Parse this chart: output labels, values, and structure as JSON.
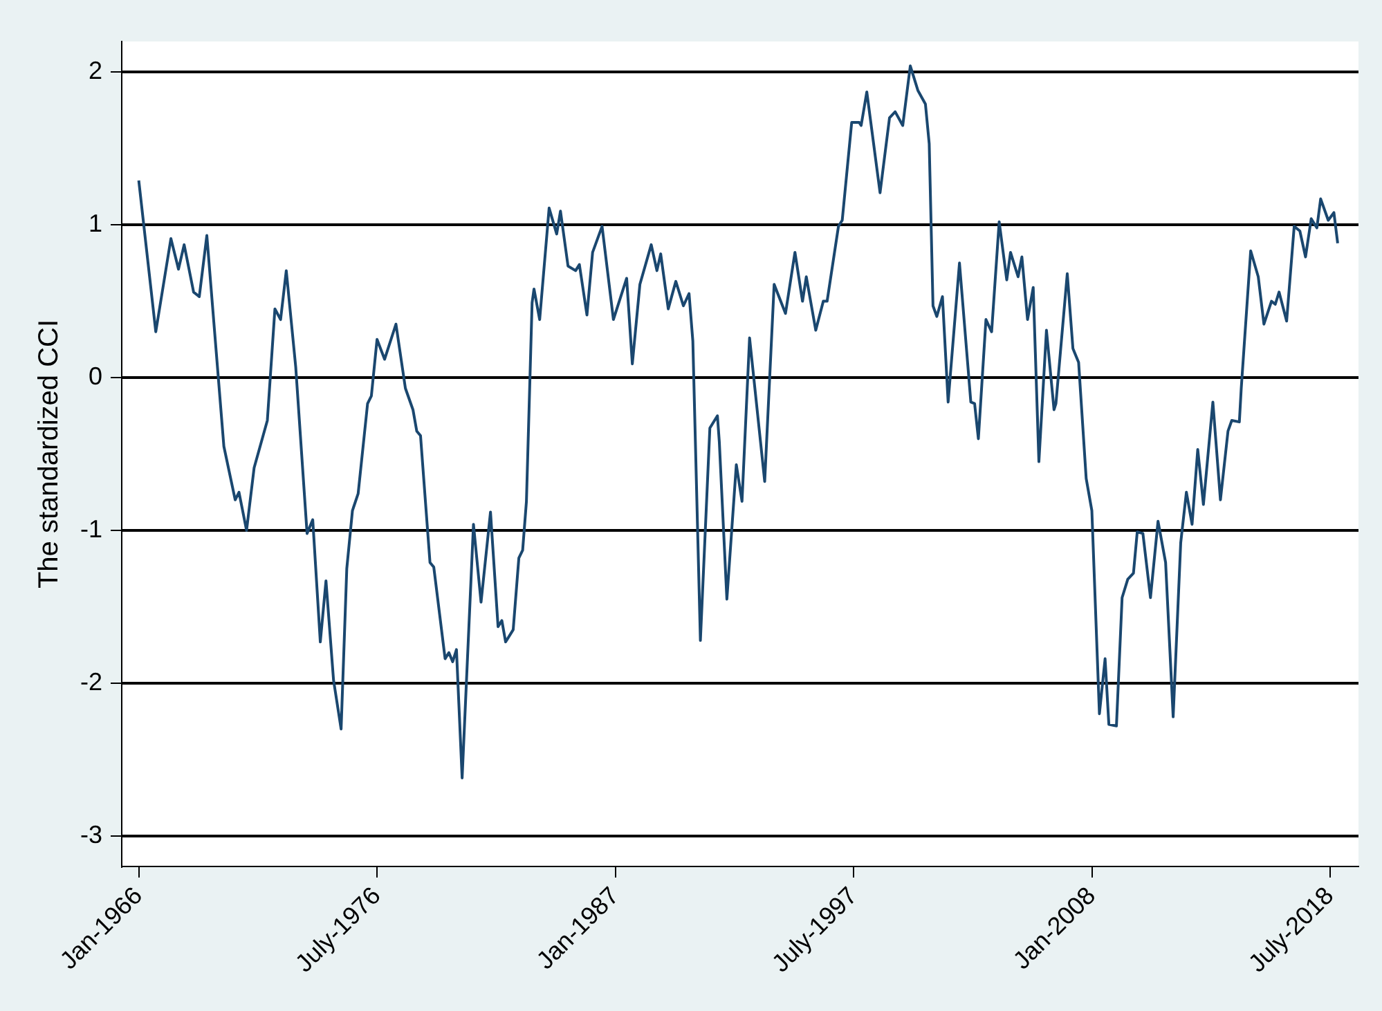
{
  "chart_data": {
    "type": "line",
    "ylabel": "The standardized CCI",
    "x": [
      "1966-01",
      "1966-10",
      "1967-06",
      "1967-10",
      "1968-01",
      "1968-06",
      "1968-09",
      "1969-01",
      "1969-10",
      "1970-04",
      "1970-06",
      "1970-10",
      "1971-02",
      "1971-09",
      "1972-01",
      "1972-04",
      "1972-07",
      "1972-12",
      "1973-06",
      "1973-09",
      "1974-01",
      "1974-04",
      "1974-08",
      "1974-12",
      "1975-03",
      "1975-06",
      "1975-09",
      "1976-02",
      "1976-04",
      "1976-07",
      "1976-11",
      "1977-05",
      "1977-10",
      "1978-02",
      "1978-04",
      "1978-06",
      "1978-11",
      "1979-01",
      "1979-07",
      "1979-09",
      "1979-11",
      "1980-01",
      "1980-04",
      "1980-10",
      "1981-02",
      "1981-07",
      "1981-11",
      "1982-01",
      "1982-03",
      "1982-07",
      "1982-10",
      "1982-12",
      "1983-02",
      "1983-05",
      "1983-06",
      "1983-09",
      "1984-02",
      "1984-06",
      "1984-08",
      "1984-12",
      "1985-04",
      "1985-06",
      "1985-10",
      "1986-01",
      "1986-06",
      "1986-12",
      "1987-07",
      "1987-10",
      "1988-02",
      "1988-08",
      "1988-11",
      "1989-01",
      "1989-05",
      "1989-09",
      "1990-01",
      "1990-04",
      "1990-06",
      "1990-10",
      "1991-03",
      "1991-07",
      "1991-08",
      "1991-12",
      "1992-05",
      "1992-08",
      "1992-12",
      "1993-08",
      "1994-01",
      "1994-07",
      "1994-12",
      "1995-04",
      "1995-06",
      "1995-11",
      "1996-03",
      "1996-05",
      "1996-11",
      "1997-01",
      "1997-06",
      "1997-10",
      "1997-11",
      "1998-02",
      "1998-09",
      "1999-02",
      "1999-05",
      "1999-09",
      "2000-01",
      "2000-05",
      "2000-09",
      "2000-11",
      "2001-01",
      "2001-03",
      "2001-06",
      "2001-09",
      "2002-03",
      "2002-09",
      "2002-11",
      "2003-01",
      "2003-05",
      "2003-08",
      "2003-12",
      "2004-04",
      "2004-06",
      "2004-10",
      "2004-12",
      "2005-03",
      "2005-06",
      "2005-09",
      "2006-01",
      "2006-05",
      "2006-06",
      "2006-12",
      "2007-03",
      "2007-06",
      "2007-10",
      "2008-01",
      "2008-05",
      "2008-08",
      "2008-10",
      "2009-02",
      "2009-05",
      "2009-08",
      "2009-11",
      "2010-01",
      "2010-04",
      "2010-08",
      "2010-12",
      "2011-04",
      "2011-08",
      "2011-12",
      "2012-03",
      "2012-06",
      "2012-09",
      "2012-12",
      "2013-05",
      "2013-09",
      "2014-01",
      "2014-03",
      "2014-07",
      "2014-08",
      "2015-01",
      "2015-05",
      "2015-08",
      "2015-12",
      "2016-02",
      "2016-04",
      "2016-08",
      "2016-12",
      "2017-03",
      "2017-06",
      "2017-09",
      "2017-12",
      "2018-02",
      "2018-06",
      "2018-09",
      "2018-11"
    ],
    "series": [
      {
        "color": "#1a476f",
        "values": [
          1.29,
          0.3,
          0.91,
          0.71,
          0.87,
          0.56,
          0.53,
          0.93,
          -0.45,
          -0.8,
          -0.75,
          -1.0,
          -0.59,
          -0.28,
          0.45,
          0.38,
          0.7,
          0.07,
          -1.02,
          -0.93,
          -1.73,
          -1.33,
          -1.98,
          -2.3,
          -1.25,
          -0.87,
          -0.76,
          -0.17,
          -0.12,
          0.25,
          0.12,
          0.35,
          -0.07,
          -0.21,
          -0.35,
          -0.38,
          -1.21,
          -1.24,
          -1.84,
          -1.8,
          -1.86,
          -1.78,
          -2.62,
          -0.96,
          -1.47,
          -0.88,
          -1.63,
          -1.59,
          -1.73,
          -1.65,
          -1.18,
          -1.13,
          -0.81,
          0.49,
          0.58,
          0.38,
          1.11,
          0.94,
          1.09,
          0.73,
          0.7,
          0.74,
          0.41,
          0.82,
          0.99,
          0.38,
          0.65,
          0.09,
          0.61,
          0.87,
          0.7,
          0.81,
          0.45,
          0.63,
          0.47,
          0.55,
          0.24,
          -1.72,
          -0.33,
          -0.25,
          -0.42,
          -1.45,
          -0.57,
          -0.81,
          0.26,
          -0.68,
          0.61,
          0.42,
          0.82,
          0.5,
          0.66,
          0.31,
          0.5,
          0.5,
          0.99,
          1.03,
          1.67,
          1.67,
          1.65,
          1.87,
          1.21,
          1.7,
          1.74,
          1.65,
          2.04,
          1.88,
          1.79,
          1.53,
          0.47,
          0.4,
          0.53,
          -0.16,
          0.75,
          -0.16,
          -0.17,
          -0.4,
          0.38,
          0.3,
          1.02,
          0.64,
          0.82,
          0.66,
          0.79,
          0.38,
          0.59,
          -0.55,
          0.31,
          -0.21,
          -0.17,
          0.68,
          0.19,
          0.1,
          -0.66,
          -0.87,
          -2.2,
          -1.84,
          -2.27,
          -2.28,
          -1.44,
          -1.32,
          -1.28,
          -1.01,
          -1.02,
          -1.44,
          -0.94,
          -1.21,
          -2.22,
          -1.08,
          -0.75,
          -0.96,
          -0.47,
          -0.83,
          -0.16,
          -0.8,
          -0.35,
          -0.28,
          -0.29,
          -0.07,
          0.83,
          0.66,
          0.35,
          0.5,
          0.48,
          0.56,
          0.37,
          0.99,
          0.96,
          0.79,
          1.04,
          0.98,
          1.17,
          1.03,
          1.08,
          0.88
        ]
      }
    ],
    "xlim": [
      "1965-04",
      "2019-10"
    ],
    "xticks": [
      {
        "value": "1966-01",
        "label": "Jan-1966"
      },
      {
        "value": "1976-07",
        "label": "July-1976"
      },
      {
        "value": "1987-01",
        "label": "Jan-1987"
      },
      {
        "value": "1997-07",
        "label": "July-1997"
      },
      {
        "value": "2008-01",
        "label": "Jan-2008"
      },
      {
        "value": "2018-07",
        "label": "July-2018"
      }
    ],
    "ylim": [
      -3.2,
      2.2
    ],
    "yticks": [
      -3,
      -2,
      -1,
      0,
      1,
      2
    ],
    "grid": "y",
    "legend": false,
    "marker": "none",
    "line_style": "solid"
  }
}
